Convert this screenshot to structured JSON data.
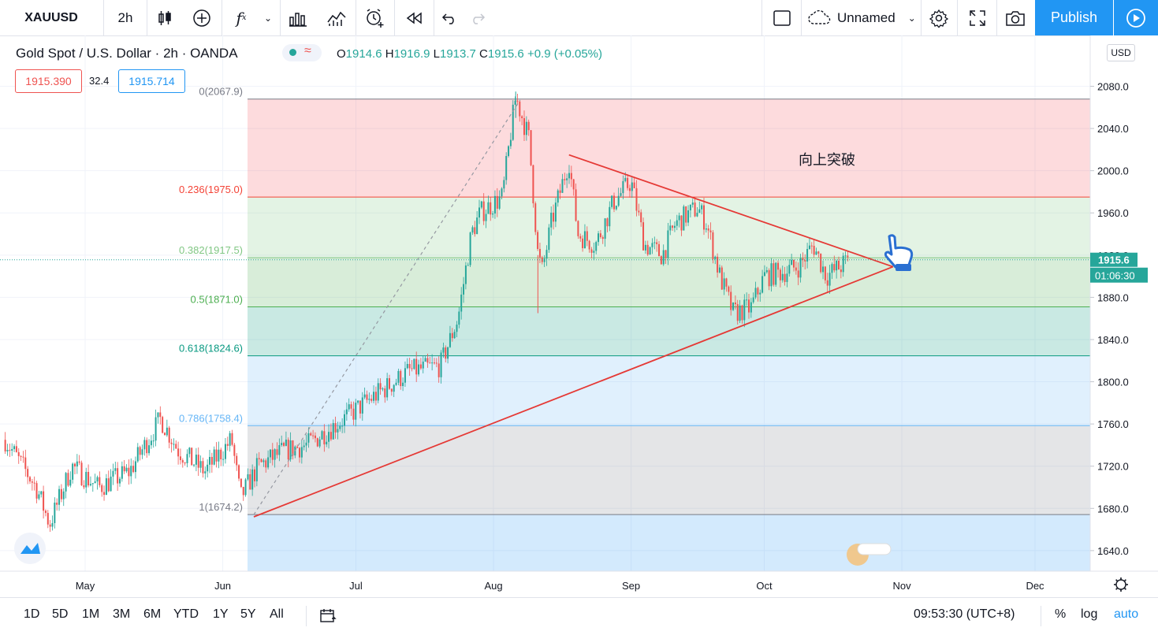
{
  "toolbar": {
    "symbol": "XAUUSD",
    "interval": "2h",
    "layout_name": "Unnamed",
    "publish_label": "Publish"
  },
  "legend": {
    "title": "Gold Spot / U.S. Dollar · 2h · OANDA",
    "ohlc": {
      "o_label": "O",
      "o": "1914.6",
      "h_label": "H",
      "h": "1916.9",
      "l_label": "L",
      "l": "1913.7",
      "c_label": "C",
      "c": "1915.6",
      "chg": "+0.9 (+0.05%)"
    },
    "bid": "1915.390",
    "spread": "32.4",
    "ask": "1915.714",
    "bid_color": "#ef5350",
    "ask_color": "#2196f3"
  },
  "price_axis": {
    "currency": "USD",
    "last_price": "1915.6",
    "countdown": "01:06:30"
  },
  "annotation": {
    "text": "向上突破"
  },
  "bottom": {
    "ranges": [
      "1D",
      "5D",
      "1M",
      "3M",
      "6M",
      "YTD",
      "1Y",
      "5Y",
      "All"
    ],
    "time": "09:53:30 (UTC+8)",
    "pct": "%",
    "log": "log",
    "auto": "auto"
  },
  "chart_data": {
    "type": "candlestick",
    "symbol": "XAUUSD",
    "interval": "2h",
    "ylim": [
      1620,
      2130
    ],
    "y_ticks": [
      1640,
      1680,
      1720,
      1760,
      1800,
      1840,
      1880,
      1920,
      1960,
      2000,
      2040,
      2080
    ],
    "y_tick_labels": [
      "1640.0",
      "1680.0",
      "1720.0",
      "1760.0",
      "1800.0",
      "1840.0",
      "1880.0",
      "1920.0",
      "1960.0",
      "2000.0",
      "2040.0",
      "2080.0"
    ],
    "x_labels": [
      "May",
      "Jun",
      "Jul",
      "Aug",
      "Sep",
      "Oct",
      "Nov",
      "Dec"
    ],
    "fibonacci": [
      {
        "level": "0",
        "price": 2067.9,
        "label": "0(2067.9)",
        "color": "#787b86"
      },
      {
        "level": "0.236",
        "price": 1975.0,
        "label": "0.236(1975.0)",
        "color": "#f44336"
      },
      {
        "level": "0.382",
        "price": 1917.5,
        "label": "0.382(1917.5)",
        "color": "#81c784"
      },
      {
        "level": "0.5",
        "price": 1871.0,
        "label": "0.5(1871.0)",
        "color": "#4caf50"
      },
      {
        "level": "0.618",
        "price": 1824.6,
        "label": "0.618(1824.6)",
        "color": "#089981"
      },
      {
        "level": "0.786",
        "price": 1758.4,
        "label": "0.786(1758.4)",
        "color": "#64b5f6"
      },
      {
        "level": "1",
        "price": 1674.2,
        "label": "1(1674.2)",
        "color": "#787b86"
      }
    ],
    "path": [
      [
        "Apr 13",
        1745
      ],
      [
        "Apr 20",
        1700
      ],
      [
        "Apr 23",
        1665
      ],
      [
        "Apr 28",
        1720
      ],
      [
        "May 4",
        1700
      ],
      [
        "May 11",
        1715
      ],
      [
        "May 18",
        1765
      ],
      [
        "May 22",
        1735
      ],
      [
        "May 28",
        1715
      ],
      [
        "Jun 3",
        1745
      ],
      [
        "Jun 5",
        1690
      ],
      [
        "Jun 9",
        1720
      ],
      [
        "Jun 15",
        1735
      ],
      [
        "Jun 20",
        1740
      ],
      [
        "Jun 30",
        1770
      ],
      [
        "Jul 3",
        1780
      ],
      [
        "Jul 8",
        1795
      ],
      [
        "Jul 13",
        1810
      ],
      [
        "Jul 20",
        1815
      ],
      [
        "Jul 24",
        1860
      ],
      [
        "Jul 27",
        1940
      ],
      [
        "Jul 29",
        1960
      ],
      [
        "Aug 3",
        1975
      ],
      [
        "Aug 5",
        2040
      ],
      [
        "Aug 6",
        2070
      ],
      [
        "Aug 9",
        2030
      ],
      [
        "Aug 11",
        1920
      ],
      [
        "Aug 12",
        1905
      ],
      [
        "Aug 14",
        1950
      ],
      [
        "Aug 18",
        2010
      ],
      [
        "Aug 20",
        1940
      ],
      [
        "Aug 24",
        1930
      ],
      [
        "Aug 28",
        1970
      ],
      [
        "Sep 1",
        1990
      ],
      [
        "Sep 4",
        1930
      ],
      [
        "Sep 8",
        1920
      ],
      [
        "Sep 11",
        1950
      ],
      [
        "Sep 16",
        1965
      ],
      [
        "Sep 18",
        1950
      ],
      [
        "Sep 21",
        1900
      ],
      [
        "Sep 24",
        1865
      ],
      [
        "Sep 28",
        1870
      ],
      [
        "Oct 1",
        1900
      ],
      [
        "Oct 6",
        1905
      ],
      [
        "Oct 9",
        1910
      ],
      [
        "Oct 12",
        1930
      ],
      [
        "Oct 15",
        1900
      ],
      [
        "Oct 20",
        1915
      ]
    ],
    "drawings": {
      "triangle_upper": [
        [
          "Aug 18",
          2015
        ],
        [
          "Oct 30",
          1909
        ]
      ],
      "triangle_lower": [
        [
          "Jun 8",
          1672
        ],
        [
          "Oct 30",
          1909
        ]
      ],
      "fib_dashed_anchor": [
        [
          "Jun 8",
          1674
        ],
        [
          "Aug 7",
          2067
        ]
      ]
    },
    "last_price": 1915.6,
    "grid": true
  }
}
